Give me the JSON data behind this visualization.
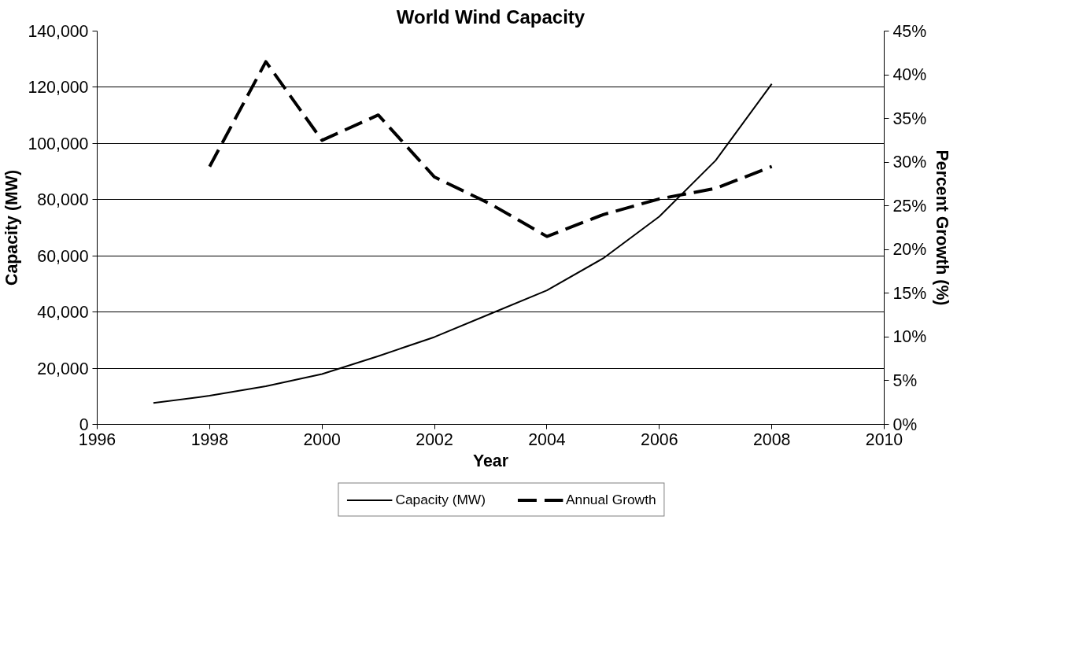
{
  "chart_data": {
    "type": "line",
    "title": "World Wind Capacity",
    "xlabel": "Year",
    "ylabel": "Capacity (MW)",
    "y2label": "Percent Growth (%)",
    "x": [
      1997,
      1998,
      1999,
      2000,
      2001,
      2002,
      2003,
      2004,
      2005,
      2006,
      2007,
      2008
    ],
    "series": [
      {
        "name": "Capacity (MW)",
        "color": "#000000",
        "line_style": "solid",
        "values": [
          7600,
          10200,
          13600,
          17900,
          24300,
          31100,
          39400,
          47700,
          59100,
          74000,
          93900,
          121200
        ]
      },
      {
        "name": "Annual Growth",
        "color": "#000000",
        "line_style": "dashed",
        "axis": "y2",
        "values": [
          null,
          29.5,
          41.5,
          32.5,
          35.4,
          28.3,
          25.2,
          21.5,
          24.0,
          25.8,
          27.0,
          29.5
        ]
      }
    ],
    "xlim": [
      1996,
      2010
    ],
    "xticks": [
      1996,
      1998,
      2000,
      2002,
      2004,
      2006,
      2008,
      2010
    ],
    "ylim": [
      0,
      140000
    ],
    "yticks": [
      0,
      {
        "value": 20000,
        "label": "20,000"
      },
      {
        "value": 40000,
        "label": "40,000"
      },
      {
        "value": 60000,
        "label": "60,000"
      },
      {
        "value": 80000,
        "label": "80,000"
      },
      {
        "value": 100000,
        "label": "100,000"
      },
      {
        "value": 120000,
        "label": "120,000"
      },
      {
        "value": 140000,
        "label": "140,000"
      }
    ],
    "y2lim": [
      0,
      45
    ],
    "y2ticks": [
      {
        "value": 0,
        "label": "0%"
      },
      {
        "value": 5,
        "label": "5%"
      },
      {
        "value": 10,
        "label": "10%"
      },
      {
        "value": 15,
        "label": "15%"
      },
      {
        "value": 20,
        "label": "20%"
      },
      {
        "value": 25,
        "label": "25%"
      },
      {
        "value": 30,
        "label": "30%"
      },
      {
        "value": 35,
        "label": "35%"
      },
      {
        "value": 40,
        "label": "40%"
      },
      {
        "value": 45,
        "label": "45%"
      }
    ],
    "grid": "y",
    "legend": "bottom",
    "marker": "none"
  }
}
